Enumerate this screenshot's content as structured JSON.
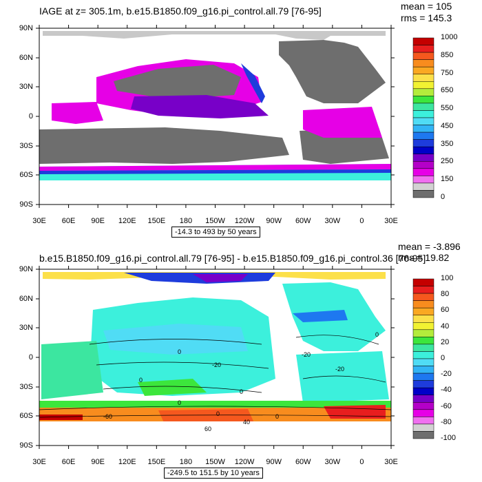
{
  "panels": [
    {
      "title": "IAGE at z= 305.1m, b.e15.B1850.f09_g16.pi_control.all.79 [76-95]",
      "mean_text": "mean = 105",
      "rms_text": "rms = 145.3",
      "range_text": "-14.3 to 493 by 50 years",
      "lat_labels": [
        "90N",
        "60N",
        "30N",
        "0",
        "30S",
        "60S",
        "90S"
      ],
      "lon_labels": [
        "30E",
        "60E",
        "90E",
        "120E",
        "150E",
        "180",
        "150W",
        "120W",
        "90W",
        "60W",
        "30W",
        "0",
        "30E"
      ],
      "colorbar": {
        "labels": [
          "1000",
          "850",
          "750",
          "650",
          "550",
          "450",
          "350",
          "250",
          "150",
          "0"
        ],
        "colors": [
          "#c40000",
          "#e81e1e",
          "#f5581e",
          "#f88c1e",
          "#faa822",
          "#fce04a",
          "#f2f232",
          "#b4ec3c",
          "#3ce63c",
          "#3ce6a0",
          "#3cf0dc",
          "#50dcf5",
          "#32b4f5",
          "#1e78f0",
          "#1e3cdc",
          "#0000c8",
          "#7800c8",
          "#b400c8",
          "#e600e6",
          "#f070f0",
          "#d2d2d2",
          "#6e6e6e"
        ]
      }
    },
    {
      "title": "b.e15.B1850.f09_g16.pi_control.all.79 [76-95] - b.e15.B1850.f09_g16.pi_control.36 [76-95]",
      "mean_text": "mean = -3.896",
      "rms_text": "rms = 19.82",
      "range_text": "-249.5 to 151.5 by 10 years",
      "lat_labels": [
        "90N",
        "60N",
        "30N",
        "0",
        "30S",
        "60S",
        "90S"
      ],
      "lon_labels": [
        "30E",
        "60E",
        "90E",
        "120E",
        "150E",
        "180",
        "150W",
        "120W",
        "90W",
        "60W",
        "30W",
        "0",
        "30E"
      ],
      "contour_labels": [
        "0",
        "0",
        "-20",
        "-20",
        "0",
        "-20",
        "0",
        "0",
        "0",
        "-60",
        "0",
        "40",
        "60"
      ],
      "colorbar": {
        "labels": [
          "100",
          "80",
          "60",
          "40",
          "20",
          "0",
          "-20",
          "-40",
          "-60",
          "-80",
          "-100"
        ],
        "colors": [
          "#c40000",
          "#e81e1e",
          "#f5581e",
          "#f88c1e",
          "#faa822",
          "#fce04a",
          "#f2f232",
          "#b4ec3c",
          "#3ce63c",
          "#3ce6a0",
          "#3cf0dc",
          "#50dcf5",
          "#32b4f5",
          "#1e78f0",
          "#1e3cdc",
          "#0000c8",
          "#7800c8",
          "#b400c8",
          "#e600e6",
          "#f070f0",
          "#d2d2d2",
          "#6e6e6e"
        ]
      }
    }
  ]
}
